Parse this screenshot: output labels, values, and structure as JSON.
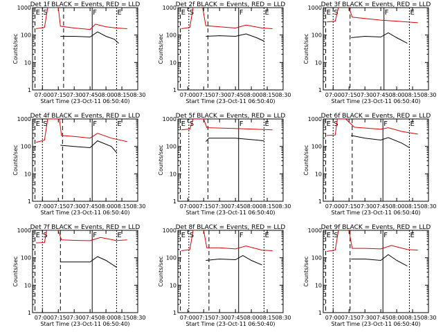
{
  "figure_title": "",
  "chart_data": [
    {
      "type": "line",
      "title": "Det 1f BLACK = Events, RED = LLD",
      "xlabel": "Start Time (23-Oct-11 06:50:40)",
      "ylabel": "Counts/sec",
      "yscale": "log",
      "ylim": [
        1,
        1000
      ],
      "xlim": [
        "06:50:40",
        "08:30:00"
      ],
      "x_ticks": [
        "07:00",
        "07:15",
        "07:30",
        "07:45",
        "08:00",
        "08:15",
        "08:30"
      ],
      "y_ticks": [
        "1",
        "10",
        "100",
        "1000"
      ],
      "markers": [
        {
          "label": "E",
          "time": "06:53"
        },
        {
          "label": "S",
          "time": "07:00"
        },
        {
          "label": "",
          "time": "07:20"
        },
        {
          "label": "F",
          "time": "07:47"
        },
        {
          "label": "E",
          "time": "08:10"
        }
      ],
      "red_series": [
        {
          "time": "06:54",
          "value": 170
        },
        {
          "time": "07:02",
          "value": 190
        },
        {
          "time": "07:05",
          "value": 1000
        },
        {
          "time": "07:15",
          "value": 1000
        },
        {
          "time": "07:17",
          "value": 210
        },
        {
          "time": "07:30",
          "value": 180
        },
        {
          "time": "07:45",
          "value": 160
        },
        {
          "time": "07:50",
          "value": 250
        },
        {
          "time": "08:00",
          "value": 200
        },
        {
          "time": "08:10",
          "value": 180
        },
        {
          "time": "08:20",
          "value": 170
        }
      ],
      "black_series": [
        {
          "time": "07:17",
          "value": 90
        },
        {
          "time": "07:30",
          "value": 90
        },
        {
          "time": "07:45",
          "value": 85
        },
        {
          "time": "07:52",
          "value": 130
        },
        {
          "time": "08:00",
          "value": 90
        },
        {
          "time": "08:08",
          "value": 70
        },
        {
          "time": "08:12",
          "value": 50
        }
      ]
    },
    {
      "type": "line",
      "title": "Det 2f BLACK = Events, RED = LLD",
      "xlabel": "Start Time (23-Oct-11 06:50:40)",
      "ylabel": "Counts/sec",
      "yscale": "log",
      "ylim": [
        1,
        1000
      ],
      "xlim": [
        "06:50:40",
        "08:30:00"
      ],
      "x_ticks": [
        "07:00",
        "07:15",
        "07:30",
        "07:45",
        "08:00",
        "08:15",
        "08:30"
      ],
      "y_ticks": [
        "1",
        "10",
        "100",
        "1000"
      ],
      "markers": [
        {
          "label": "E",
          "time": "06:53"
        },
        {
          "label": "S",
          "time": "07:01"
        },
        {
          "label": "",
          "time": "07:19"
        },
        {
          "label": "F",
          "time": "07:48"
        },
        {
          "label": "E",
          "time": "08:12"
        }
      ],
      "red_series": [
        {
          "time": "06:54",
          "value": 170
        },
        {
          "time": "07:02",
          "value": 190
        },
        {
          "time": "07:05",
          "value": 1000
        },
        {
          "time": "07:14",
          "value": 1000
        },
        {
          "time": "07:17",
          "value": 220
        },
        {
          "time": "07:30",
          "value": 200
        },
        {
          "time": "07:45",
          "value": 180
        },
        {
          "time": "07:55",
          "value": 230
        },
        {
          "time": "08:10",
          "value": 180
        },
        {
          "time": "08:20",
          "value": 170
        }
      ],
      "black_series": [
        {
          "time": "07:17",
          "value": 90
        },
        {
          "time": "07:30",
          "value": 95
        },
        {
          "time": "07:45",
          "value": 90
        },
        {
          "time": "07:55",
          "value": 110
        },
        {
          "time": "08:05",
          "value": 80
        },
        {
          "time": "08:12",
          "value": 60
        }
      ]
    },
    {
      "type": "line",
      "title": "Det 3f BLACK = Events, RED = LLD",
      "xlabel": "Start Time (23-Oct-11 06:50:40)",
      "ylabel": "Counts/sec",
      "yscale": "log",
      "ylim": [
        1,
        1000
      ],
      "xlim": [
        "06:50:40",
        "08:30:00"
      ],
      "x_ticks": [
        "07:00",
        "07:15",
        "07:30",
        "07:45",
        "08:00",
        "08:15",
        "08:30"
      ],
      "y_ticks": [
        "1",
        "10",
        "100",
        "1000"
      ],
      "markers": [
        {
          "label": "E",
          "time": "06:53"
        },
        {
          "label": "S",
          "time": "07:00"
        },
        {
          "label": "",
          "time": "07:16"
        },
        {
          "label": "F",
          "time": "07:48"
        },
        {
          "label": "E",
          "time": "08:12"
        }
      ],
      "red_series": [
        {
          "time": "06:54",
          "value": 300
        },
        {
          "time": "07:02",
          "value": 320
        },
        {
          "time": "07:05",
          "value": 1000
        },
        {
          "time": "07:15",
          "value": 1000
        },
        {
          "time": "07:18",
          "value": 450
        },
        {
          "time": "07:30",
          "value": 400
        },
        {
          "time": "07:45",
          "value": 350
        },
        {
          "time": "08:00",
          "value": 320
        },
        {
          "time": "08:20",
          "value": 280
        }
      ],
      "black_series": [
        {
          "time": "07:17",
          "value": 80
        },
        {
          "time": "07:30",
          "value": 90
        },
        {
          "time": "07:45",
          "value": 85
        },
        {
          "time": "07:52",
          "value": 120
        },
        {
          "time": "08:00",
          "value": 80
        },
        {
          "time": "08:10",
          "value": 50
        }
      ]
    },
    {
      "type": "line",
      "title": "Det 4f BLACK = Events, RED = LLD",
      "xlabel": "Start Time (23-Oct-11 06:50:40)",
      "ylabel": "Counts/sec",
      "yscale": "log",
      "ylim": [
        1,
        1000
      ],
      "xlim": [
        "06:50:40",
        "08:30:00"
      ],
      "x_ticks": [
        "07:00",
        "07:15",
        "07:30",
        "07:45",
        "08:00",
        "08:15",
        "08:30"
      ],
      "y_ticks": [
        "1",
        "10",
        "100",
        "1000"
      ],
      "markers": [
        {
          "label": "E",
          "time": "06:53"
        },
        {
          "label": "S",
          "time": "07:00"
        },
        {
          "label": "",
          "time": "07:19"
        },
        {
          "label": "F",
          "time": "07:47"
        },
        {
          "label": "E",
          "time": "08:10"
        }
      ],
      "red_series": [
        {
          "time": "06:54",
          "value": 140
        },
        {
          "time": "07:02",
          "value": 170
        },
        {
          "time": "07:05",
          "value": 1000
        },
        {
          "time": "07:16",
          "value": 1000
        },
        {
          "time": "07:18",
          "value": 250
        },
        {
          "time": "07:30",
          "value": 230
        },
        {
          "time": "07:45",
          "value": 200
        },
        {
          "time": "07:52",
          "value": 300
        },
        {
          "time": "08:05",
          "value": 200
        },
        {
          "time": "08:20",
          "value": 150
        }
      ],
      "black_series": [
        {
          "time": "07:17",
          "value": 110
        },
        {
          "time": "07:30",
          "value": 100
        },
        {
          "time": "07:45",
          "value": 90
        },
        {
          "time": "07:52",
          "value": 160
        },
        {
          "time": "08:05",
          "value": 100
        },
        {
          "time": "08:10",
          "value": 60
        }
      ]
    },
    {
      "type": "line",
      "title": "Det 5f BLACK = Events, RED = LLD",
      "xlabel": "Start Time (23-Oct-11 06:50:40)",
      "ylabel": "Counts/sec",
      "yscale": "log",
      "ylim": [
        1,
        1000
      ],
      "xlim": [
        "06:50:40",
        "08:30:00"
      ],
      "x_ticks": [
        "07:00",
        "07:15",
        "07:30",
        "07:45",
        "08:00",
        "08:15",
        "08:30"
      ],
      "y_ticks": [
        "1",
        "10",
        "100",
        "1000"
      ],
      "markers": [
        {
          "label": "E",
          "time": "06:53"
        },
        {
          "label": "S",
          "time": "07:01"
        },
        {
          "label": "",
          "time": "07:19"
        },
        {
          "label": "F",
          "time": "07:48"
        },
        {
          "label": "E",
          "time": "08:12"
        }
      ],
      "red_series": [
        {
          "time": "06:54",
          "value": 400
        },
        {
          "time": "07:02",
          "value": 430
        },
        {
          "time": "07:05",
          "value": 1000
        },
        {
          "time": "07:15",
          "value": 1000
        },
        {
          "time": "07:18",
          "value": 480
        },
        {
          "time": "07:45",
          "value": 450
        },
        {
          "time": "08:05",
          "value": 420
        },
        {
          "time": "08:20",
          "value": 400
        }
      ],
      "black_series": [
        {
          "time": "07:17",
          "value": 150
        },
        {
          "time": "07:20",
          "value": 200
        },
        {
          "time": "07:45",
          "value": 200
        },
        {
          "time": "08:05",
          "value": 170
        },
        {
          "time": "08:12",
          "value": 160
        }
      ]
    },
    {
      "type": "line",
      "title": "Det 6f BLACK = Events, RED = LLD",
      "xlabel": "Start Time (23-Oct-11 06:50:40)",
      "ylabel": "Counts/sec",
      "yscale": "log",
      "ylim": [
        1,
        1000
      ],
      "xlim": [
        "06:50:40",
        "08:30:00"
      ],
      "x_ticks": [
        "07:00",
        "07:15",
        "07:30",
        "07:45",
        "08:00",
        "08:15",
        "08:30"
      ],
      "y_ticks": [
        "1",
        "10",
        "100",
        "1000"
      ],
      "markers": [
        {
          "label": "E",
          "time": "06:53"
        },
        {
          "label": "S",
          "time": "07:00"
        },
        {
          "label": "",
          "time": "07:18"
        },
        {
          "label": "F",
          "time": "07:47"
        },
        {
          "label": "E",
          "time": "08:12"
        }
      ],
      "red_series": [
        {
          "time": "06:54",
          "value": 250
        },
        {
          "time": "07:02",
          "value": 260
        },
        {
          "time": "07:04",
          "value": 1000
        },
        {
          "time": "07:12",
          "value": 1000
        },
        {
          "time": "07:16",
          "value": 700
        },
        {
          "time": "07:20",
          "value": 500
        },
        {
          "time": "07:45",
          "value": 420
        },
        {
          "time": "07:52",
          "value": 480
        },
        {
          "time": "08:05",
          "value": 350
        },
        {
          "time": "08:20",
          "value": 280
        }
      ],
      "black_series": [
        {
          "time": "07:17",
          "value": 250
        },
        {
          "time": "07:30",
          "value": 200
        },
        {
          "time": "07:45",
          "value": 170
        },
        {
          "time": "07:52",
          "value": 210
        },
        {
          "time": "08:05",
          "value": 130
        },
        {
          "time": "08:12",
          "value": 90
        }
      ]
    },
    {
      "type": "line",
      "title": "Det 7f BLACK = Events, RED = LLD",
      "xlabel": "Start Time (23-Oct-11 06:50:40)",
      "ylabel": "Counts/sec",
      "yscale": "log",
      "ylim": [
        1,
        1000
      ],
      "xlim": [
        "06:50:40",
        "08:30:00"
      ],
      "x_ticks": [
        "07:00",
        "07:15",
        "07:30",
        "07:45",
        "08:00",
        "08:15",
        "08:30"
      ],
      "y_ticks": [
        "1",
        "10",
        "100",
        "1000"
      ],
      "markers": [
        {
          "label": "E",
          "time": "06:53"
        },
        {
          "label": "S",
          "time": "07:00"
        },
        {
          "label": "",
          "time": "07:17"
        },
        {
          "label": "F",
          "time": "07:47"
        },
        {
          "label": "E",
          "time": "08:10"
        }
      ],
      "red_series": [
        {
          "time": "06:54",
          "value": 350
        },
        {
          "time": "07:02",
          "value": 360
        },
        {
          "time": "07:04",
          "value": 1000
        },
        {
          "time": "07:15",
          "value": 1000
        },
        {
          "time": "07:18",
          "value": 450
        },
        {
          "time": "07:30",
          "value": 430
        },
        {
          "time": "07:45",
          "value": 420
        },
        {
          "time": "07:55",
          "value": 550
        },
        {
          "time": "08:10",
          "value": 420
        },
        {
          "time": "08:20",
          "value": 450
        }
      ],
      "black_series": [
        {
          "time": "07:17",
          "value": 70
        },
        {
          "time": "07:30",
          "value": 70
        },
        {
          "time": "07:45",
          "value": 70
        },
        {
          "time": "07:52",
          "value": 110
        },
        {
          "time": "08:00",
          "value": 80
        },
        {
          "time": "08:10",
          "value": 45
        }
      ]
    },
    {
      "type": "line",
      "title": "Det 8f BLACK = Events, RED = LLD",
      "xlabel": "Start Time (23-Oct-11 06:50:40)",
      "ylabel": "Counts/sec",
      "yscale": "log",
      "ylim": [
        1,
        1000
      ],
      "xlim": [
        "06:50:40",
        "08:30:00"
      ],
      "x_ticks": [
        "07:00",
        "07:15",
        "07:30",
        "07:45",
        "08:00",
        "08:15",
        "08:30"
      ],
      "y_ticks": [
        "1",
        "10",
        "100",
        "1000"
      ],
      "markers": [
        {
          "label": "E",
          "time": "06:53"
        },
        {
          "label": "S",
          "time": "07:01"
        },
        {
          "label": "",
          "time": "07:20"
        },
        {
          "label": "F",
          "time": "07:48"
        },
        {
          "label": "E",
          "time": "08:12"
        }
      ],
      "red_series": [
        {
          "time": "06:54",
          "value": 180
        },
        {
          "time": "07:02",
          "value": 200
        },
        {
          "time": "07:05",
          "value": 1000
        },
        {
          "time": "07:15",
          "value": 1000
        },
        {
          "time": "07:18",
          "value": 230
        },
        {
          "time": "07:30",
          "value": 230
        },
        {
          "time": "07:45",
          "value": 210
        },
        {
          "time": "07:55",
          "value": 270
        },
        {
          "time": "08:10",
          "value": 190
        },
        {
          "time": "08:20",
          "value": 180
        }
      ],
      "black_series": [
        {
          "time": "07:17",
          "value": 80
        },
        {
          "time": "07:30",
          "value": 90
        },
        {
          "time": "07:45",
          "value": 85
        },
        {
          "time": "07:52",
          "value": 120
        },
        {
          "time": "08:00",
          "value": 80
        },
        {
          "time": "08:10",
          "value": 55
        }
      ]
    },
    {
      "type": "line",
      "title": "Det 9f BLACK = Events, RED = LLD",
      "xlabel": "Start Time (23-Oct-11 06:50:40)",
      "ylabel": "Counts/sec",
      "yscale": "log",
      "ylim": [
        1,
        1000
      ],
      "xlim": [
        "06:50:40",
        "08:30:00"
      ],
      "x_ticks": [
        "07:00",
        "07:15",
        "07:30",
        "07:45",
        "08:00",
        "08:15",
        "08:30"
      ],
      "y_ticks": [
        "1",
        "10",
        "100",
        "1000"
      ],
      "markers": [
        {
          "label": "E",
          "time": "06:53"
        },
        {
          "label": "S",
          "time": "07:00"
        },
        {
          "label": "",
          "time": "07:16"
        },
        {
          "label": "F",
          "time": "07:47"
        },
        {
          "label": "E",
          "time": "08:12"
        }
      ],
      "red_series": [
        {
          "time": "06:54",
          "value": 170
        },
        {
          "time": "07:02",
          "value": 190
        },
        {
          "time": "07:05",
          "value": 1000
        },
        {
          "time": "07:15",
          "value": 1000
        },
        {
          "time": "07:18",
          "value": 220
        },
        {
          "time": "07:30",
          "value": 220
        },
        {
          "time": "07:45",
          "value": 210
        },
        {
          "time": "07:55",
          "value": 280
        },
        {
          "time": "08:10",
          "value": 200
        },
        {
          "time": "08:20",
          "value": 190
        }
      ],
      "black_series": [
        {
          "time": "07:17",
          "value": 90
        },
        {
          "time": "07:30",
          "value": 90
        },
        {
          "time": "07:45",
          "value": 80
        },
        {
          "time": "07:52",
          "value": 130
        },
        {
          "time": "08:00",
          "value": 80
        },
        {
          "time": "08:10",
          "value": 50
        }
      ]
    }
  ],
  "style": {
    "red": "#dd0000",
    "black": "#000000"
  }
}
